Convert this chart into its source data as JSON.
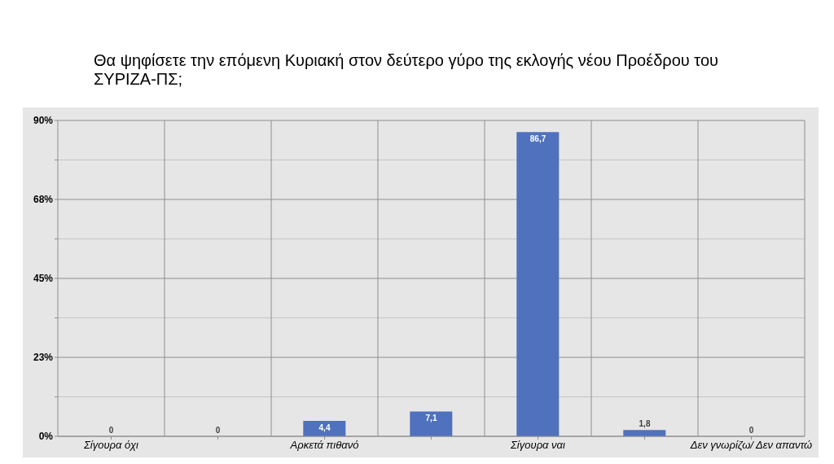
{
  "chart_data": {
    "type": "bar",
    "title": "Θα ψηφίσετε την επόμενη Κυριακή στον δεύτερο γύρο της εκλογής νέου Προέδρου του ΣΥΡΙΖΑ-ΠΣ;",
    "categories": [
      "Σίγουρα όχι",
      null,
      "Αρκετά πιθανό",
      null,
      "Σίγουρα ναι",
      null,
      "Δεν γνωρίζω/ Δεν απαντώ"
    ],
    "values": [
      0,
      0,
      4.4,
      7.1,
      86.7,
      1.8,
      0
    ],
    "value_labels": [
      "0",
      "0",
      "4,4",
      "7,1",
      "86,7",
      "1,8",
      "0"
    ],
    "color": "#4f71be",
    "ylim": [
      0,
      90
    ],
    "yticks": [
      {
        "value": 0,
        "label": "0%"
      },
      {
        "value": 11.25,
        "label": null
      },
      {
        "value": 22.5,
        "label": "23%"
      },
      {
        "value": 33.75,
        "label": null
      },
      {
        "value": 45,
        "label": "45%"
      },
      {
        "value": 56.25,
        "label": null
      },
      {
        "value": 67.5,
        "label": "68%"
      },
      {
        "value": 78.75,
        "label": null
      },
      {
        "value": 90,
        "label": "90%"
      }
    ],
    "grid": true
  }
}
